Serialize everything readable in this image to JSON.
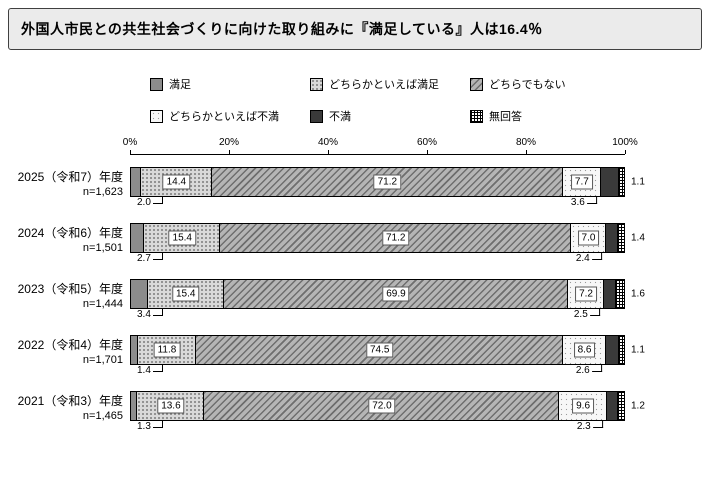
{
  "title": "外国人市民との共生社会づくりに向けた取り組みに『満足している』人は16.4％",
  "chart_data": {
    "type": "bar",
    "orientation": "horizontal",
    "stacked": true,
    "unit": "%",
    "title": "外国人市民との共生社会づくりに向けた取り組みに『満足している』人は16.4％",
    "legend_position": "top",
    "grid": false,
    "xlim": [
      0,
      100
    ],
    "x_ticks": [
      "0%",
      "20%",
      "40%",
      "60%",
      "80%",
      "100%"
    ],
    "categories": [
      "2025（令和7）年度",
      "2024（令和6）年度",
      "2023（令和5）年度",
      "2022（令和4）年度",
      "2021（令和3）年度"
    ],
    "sample_sizes": [
      "n=1,623",
      "n=1,501",
      "n=1,444",
      "n=1,701",
      "n=1,465"
    ],
    "series": [
      {
        "name": "満足",
        "values": [
          2.0,
          2.7,
          3.4,
          1.4,
          1.3
        ]
      },
      {
        "name": "どちらかといえば満足",
        "values": [
          14.4,
          15.4,
          15.4,
          11.8,
          13.6
        ]
      },
      {
        "name": "どちらでもない",
        "values": [
          71.2,
          71.2,
          69.9,
          74.5,
          72.0
        ]
      },
      {
        "name": "どちらかといえば不満",
        "values": [
          7.7,
          7.0,
          7.2,
          8.6,
          9.6
        ]
      },
      {
        "name": "不満",
        "values": [
          3.6,
          2.4,
          2.5,
          2.6,
          2.3
        ]
      },
      {
        "name": "無回答",
        "values": [
          1.1,
          1.4,
          1.6,
          1.1,
          1.2
        ]
      }
    ]
  },
  "colors": {
    "satisfied_fill": "#8c8c8c",
    "dissatisfied_fill": "#3a3a3a",
    "bar_border": "#000000",
    "title_background": "#ebebeb",
    "title_border": "#404040"
  }
}
